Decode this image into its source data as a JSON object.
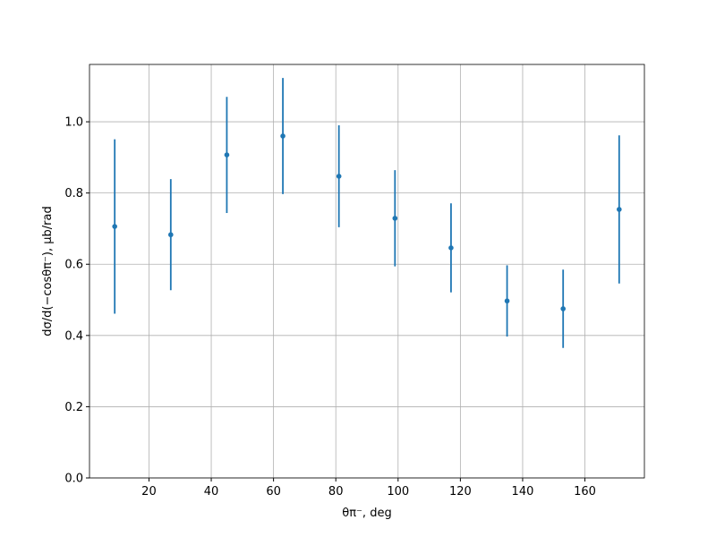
{
  "chart_data": {
    "type": "errorbar",
    "xlabel": "θπ⁻, deg",
    "ylabel": "dσ/d(−cosθπ⁻), μb/rad",
    "x": [
      9,
      27,
      45,
      63,
      81,
      99,
      117,
      135,
      153,
      171
    ],
    "series": [
      {
        "color": "#1f77b4",
        "values": [
          0.706,
          0.683,
          0.907,
          0.96,
          0.847,
          0.729,
          0.646,
          0.497,
          0.475,
          0.754
        ],
        "errors": [
          0.245,
          0.156,
          0.163,
          0.163,
          0.143,
          0.135,
          0.125,
          0.1,
          0.11,
          0.208
        ]
      }
    ],
    "xlim": [
      0.9,
      179.1
    ],
    "ylim": [
      0,
      1.161
    ],
    "xticks": [
      20,
      40,
      60,
      80,
      100,
      120,
      140,
      160
    ],
    "yticks": [
      {
        "value": 0,
        "label": "0.0"
      },
      0.2,
      0.4,
      0.6,
      0.8,
      {
        "value": 1,
        "label": "1.0"
      }
    ],
    "grid": true
  }
}
